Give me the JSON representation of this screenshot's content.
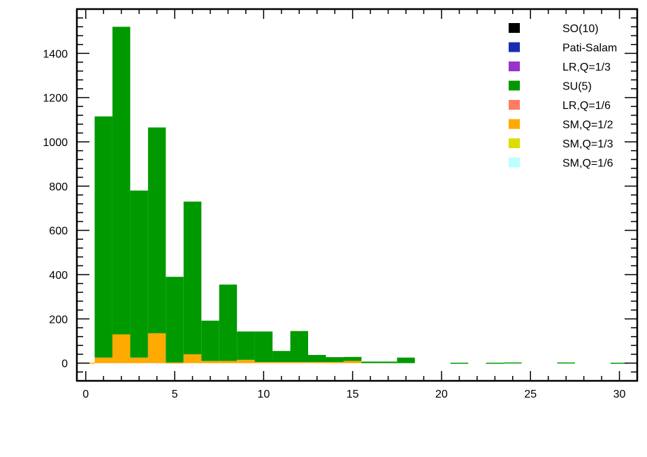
{
  "chart_data": {
    "type": "bar",
    "stacked": true,
    "title": "",
    "xlabel": "",
    "ylabel": "",
    "xlim": [
      -0.5,
      31
    ],
    "ylim": [
      -80,
      1600
    ],
    "x_ticks": [
      0,
      5,
      10,
      15,
      20,
      25,
      30
    ],
    "y_ticks": [
      0,
      200,
      400,
      600,
      800,
      1000,
      1200,
      1400
    ],
    "grid": false,
    "legend_position": "top-right",
    "bin_width": 1,
    "x": [
      0,
      1,
      2,
      3,
      4,
      5,
      6,
      7,
      8,
      9,
      10,
      11,
      12,
      13,
      14,
      15,
      16,
      17,
      18,
      19,
      20,
      21,
      22,
      23,
      24,
      25,
      26,
      27,
      28,
      29,
      30
    ],
    "series": [
      {
        "name": "SO(10)",
        "color": "#000000",
        "values": [
          0,
          0,
          0,
          0,
          0,
          0,
          0,
          0,
          0,
          0,
          0,
          0,
          0,
          0,
          0,
          0,
          0,
          0,
          0,
          0,
          0,
          0,
          0,
          0,
          0,
          0,
          0,
          0,
          0,
          0,
          0
        ]
      },
      {
        "name": "Pati-Salam",
        "color": "#1a2db0",
        "values": [
          0,
          0,
          0,
          0,
          0,
          0,
          0,
          0,
          0,
          0,
          0,
          0,
          0,
          0,
          0,
          0,
          0,
          0,
          0,
          0,
          0,
          0,
          0,
          0,
          0,
          0,
          0,
          0,
          0,
          0,
          0
        ]
      },
      {
        "name": "LR,Q=1/3",
        "color": "#9933cc",
        "values": [
          0,
          0,
          0,
          0,
          0,
          0,
          0,
          0,
          0,
          0,
          0,
          0,
          0,
          0,
          0,
          0,
          0,
          0,
          0,
          0,
          0,
          0,
          0,
          0,
          0,
          0,
          0,
          0,
          0,
          0,
          0
        ]
      },
      {
        "name": "SU(5)",
        "color": "#009900",
        "values": [
          0,
          1090,
          1390,
          755,
          930,
          387,
          690,
          182,
          345,
          128,
          138,
          50,
          140,
          32,
          22,
          18,
          7,
          7,
          25,
          0,
          0,
          2,
          0,
          2,
          3,
          0,
          0,
          3,
          0,
          0,
          2
        ]
      },
      {
        "name": "LR,Q=1/6",
        "color": "#ff7b62",
        "values": [
          0,
          0,
          0,
          0,
          0,
          0,
          0,
          0,
          0,
          0,
          0,
          0,
          0,
          0,
          0,
          0,
          0,
          0,
          0,
          0,
          0,
          0,
          0,
          0,
          0,
          0,
          0,
          0,
          0,
          0,
          0
        ]
      },
      {
        "name": "SM,Q=1/2",
        "color": "#ffaa00",
        "values": [
          2,
          25,
          130,
          25,
          135,
          3,
          40,
          10,
          10,
          15,
          5,
          5,
          5,
          5,
          5,
          10,
          0,
          0,
          0,
          0,
          0,
          0,
          0,
          0,
          0,
          0,
          0,
          0,
          0,
          0,
          0
        ]
      },
      {
        "name": "SM,Q=1/3",
        "color": "#dddd00",
        "values": [
          0,
          0,
          0,
          0,
          0,
          0,
          0,
          0,
          0,
          0,
          0,
          0,
          0,
          0,
          0,
          0,
          0,
          0,
          0,
          0,
          0,
          0,
          0,
          0,
          0,
          0,
          0,
          0,
          0,
          0,
          0
        ]
      },
      {
        "name": "SM,Q=1/6",
        "color": "#bbffff",
        "values": [
          0,
          0,
          0,
          0,
          0,
          0,
          0,
          0,
          0,
          0,
          0,
          0,
          0,
          0,
          0,
          0,
          0,
          0,
          0,
          0,
          0,
          0,
          0,
          0,
          0,
          0,
          0,
          0,
          0,
          0,
          0
        ]
      }
    ]
  }
}
